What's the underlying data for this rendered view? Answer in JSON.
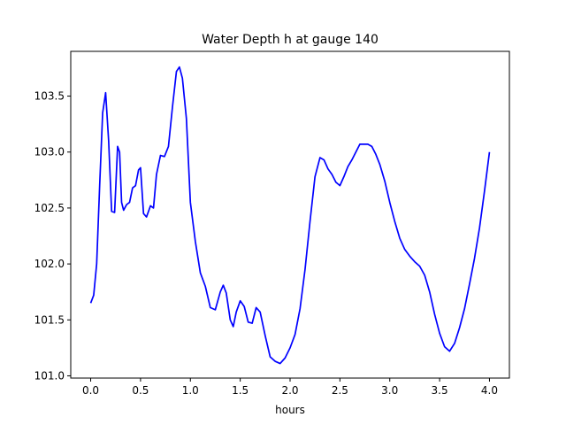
{
  "chart_data": {
    "type": "line",
    "title": "Water Depth h at gauge 140",
    "xlabel": "hours",
    "ylabel": "",
    "xlim": [
      -0.2,
      4.2
    ],
    "ylim": [
      100.98,
      103.9
    ],
    "xticks": [
      0.0,
      0.5,
      1.0,
      1.5,
      2.0,
      2.5,
      3.0,
      3.5,
      4.0
    ],
    "xtick_labels": [
      "0.0",
      "0.5",
      "1.0",
      "1.5",
      "2.0",
      "2.5",
      "3.0",
      "3.5",
      "4.0"
    ],
    "yticks": [
      101.0,
      101.5,
      102.0,
      102.5,
      103.0,
      103.5
    ],
    "ytick_labels": [
      "101.0",
      "101.5",
      "102.0",
      "102.5",
      "103.0",
      "103.5"
    ],
    "grid": false,
    "series": [
      {
        "color": "#0000ff",
        "x": [
          0.0,
          0.03,
          0.06,
          0.09,
          0.12,
          0.15,
          0.18,
          0.21,
          0.24,
          0.27,
          0.29,
          0.31,
          0.33,
          0.36,
          0.39,
          0.42,
          0.45,
          0.48,
          0.5,
          0.53,
          0.56,
          0.6,
          0.63,
          0.66,
          0.7,
          0.74,
          0.78,
          0.82,
          0.86,
          0.89,
          0.92,
          0.96,
          1.0,
          1.05,
          1.1,
          1.15,
          1.2,
          1.25,
          1.3,
          1.33,
          1.36,
          1.4,
          1.43,
          1.46,
          1.5,
          1.54,
          1.58,
          1.62,
          1.66,
          1.7,
          1.75,
          1.8,
          1.85,
          1.9,
          1.95,
          2.0,
          2.05,
          2.1,
          2.15,
          2.2,
          2.25,
          2.3,
          2.34,
          2.38,
          2.42,
          2.46,
          2.5,
          2.54,
          2.58,
          2.62,
          2.66,
          2.7,
          2.74,
          2.78,
          2.82,
          2.86,
          2.9,
          2.95,
          3.0,
          3.05,
          3.1,
          3.15,
          3.2,
          3.25,
          3.3,
          3.35,
          3.4,
          3.45,
          3.5,
          3.55,
          3.6,
          3.65,
          3.7,
          3.75,
          3.8,
          3.85,
          3.9,
          3.95,
          4.0
        ],
        "y": [
          101.65,
          101.72,
          102.0,
          102.7,
          103.35,
          103.53,
          103.1,
          102.47,
          102.46,
          103.05,
          103.0,
          102.55,
          102.48,
          102.53,
          102.55,
          102.68,
          102.7,
          102.84,
          102.86,
          102.45,
          102.42,
          102.52,
          102.5,
          102.8,
          102.97,
          102.96,
          103.05,
          103.4,
          103.72,
          103.76,
          103.66,
          103.3,
          102.55,
          102.2,
          101.92,
          101.8,
          101.61,
          101.59,
          101.75,
          101.81,
          101.74,
          101.5,
          101.44,
          101.57,
          101.67,
          101.62,
          101.48,
          101.47,
          101.61,
          101.57,
          101.36,
          101.17,
          101.13,
          101.11,
          101.16,
          101.25,
          101.37,
          101.6,
          101.95,
          102.38,
          102.78,
          102.95,
          102.93,
          102.85,
          102.8,
          102.73,
          102.7,
          102.78,
          102.87,
          102.93,
          103.0,
          103.07,
          103.07,
          103.07,
          103.05,
          102.98,
          102.89,
          102.74,
          102.55,
          102.38,
          102.23,
          102.13,
          102.07,
          102.02,
          101.98,
          101.9,
          101.75,
          101.55,
          101.38,
          101.26,
          101.22,
          101.29,
          101.43,
          101.6,
          101.82,
          102.05,
          102.32,
          102.65,
          103.0
        ]
      }
    ]
  }
}
